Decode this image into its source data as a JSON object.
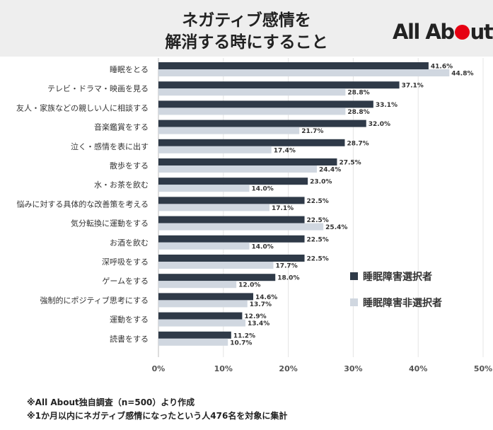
{
  "header": {
    "title_line1": "ネガティブ感情を",
    "title_line2": "解消する時にすること",
    "logo_left": "All Ab",
    "logo_right": "ut",
    "logo_color": "#e60012"
  },
  "chart_data": {
    "type": "bar",
    "orientation": "horizontal",
    "categories": [
      "睡眠をとる",
      "テレビ・ドラマ・映画を見る",
      "友人・家族などの親しい人に相談する",
      "音楽鑑賞をする",
      "泣く・感情を表に出す",
      "散歩をする",
      "水・お茶を飲む",
      "悩みに対する具体的な改善策を考える",
      "気分転換に運動をする",
      "お酒を飲む",
      "深呼吸をする",
      "ゲームをする",
      "強制的にポジティブ思考にする",
      "運動をする",
      "読書をする"
    ],
    "series": [
      {
        "name": "睡眠障害選択者",
        "color": "#2f3a48",
        "values": [
          41.6,
          37.1,
          33.1,
          32.0,
          28.7,
          27.5,
          23.0,
          22.5,
          22.5,
          22.5,
          22.5,
          18.0,
          14.6,
          12.9,
          11.2
        ],
        "labels": [
          "41.6%",
          "37.1%",
          "33.1%",
          "32.0%",
          "28.7%",
          "27.5%",
          "23.0%",
          "22.5%",
          "22.5%",
          "22.5%",
          "22.5%",
          "18.0%",
          "14.6%",
          "12.9%",
          "11.2%"
        ]
      },
      {
        "name": "睡眠障害非選択者",
        "color": "#d0d7e0",
        "values": [
          44.8,
          28.8,
          28.8,
          21.7,
          17.4,
          24.4,
          14.0,
          17.1,
          25.4,
          14.0,
          17.7,
          12.0,
          13.7,
          13.4,
          10.7
        ],
        "labels": [
          "44.8%",
          "28.8%",
          "28.8%",
          "21.7%",
          "17.4%",
          "24.4%",
          "14.0%",
          "17.1%",
          "25.4%",
          "14.0%",
          "17.7%",
          "12.0%",
          "13.7%",
          "13.4%",
          "10.7%"
        ]
      }
    ],
    "xlim": [
      0,
      50
    ],
    "xticks": [
      "0%",
      "10%",
      "20%",
      "30%",
      "40%",
      "50%"
    ],
    "grid": true,
    "legend_position": "right"
  },
  "notes": {
    "line1": "※All About独自調査（n=500）より作成",
    "line2": "※1か月以内にネガティブ感情になったという人476名を対象に集計"
  }
}
